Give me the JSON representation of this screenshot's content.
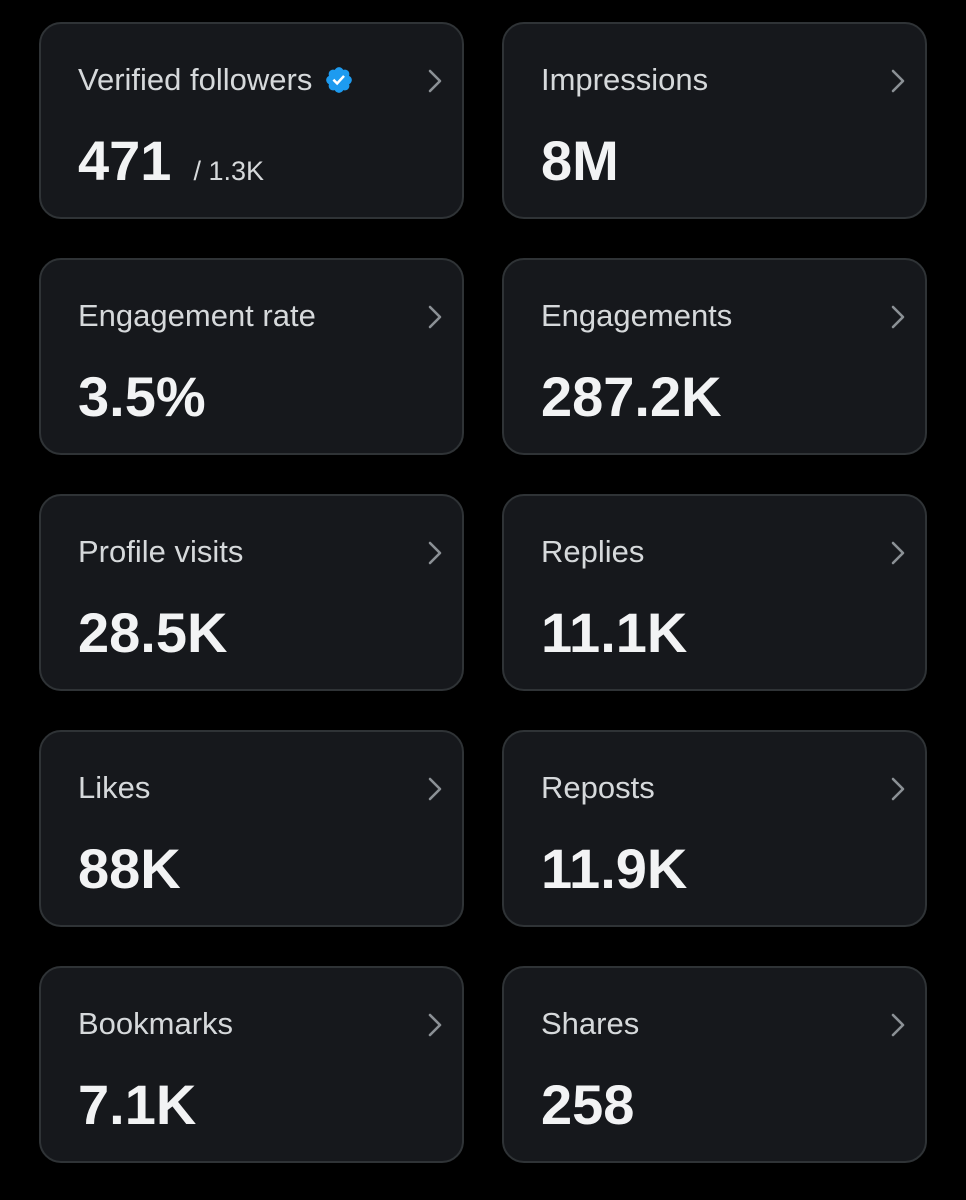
{
  "colors": {
    "background": "#000000",
    "card_background": "#16181c",
    "card_border": "#2f3336",
    "text_primary": "#f2f3f4",
    "text_secondary": "#d6d9db",
    "verified_badge": "#1d9bf0",
    "chevron": "#8b9095"
  },
  "icons": {
    "verified": "verified-badge-icon",
    "chevron": "chevron-right-icon"
  },
  "cards": [
    {
      "label": "Verified followers",
      "value": "471",
      "total": "/ 1.3K",
      "verified": true
    },
    {
      "label": "Impressions",
      "value": "8M"
    },
    {
      "label": "Engagement rate",
      "value": "3.5%"
    },
    {
      "label": "Engagements",
      "value": "287.2K"
    },
    {
      "label": "Profile visits",
      "value": "28.5K"
    },
    {
      "label": "Replies",
      "value": "11.1K"
    },
    {
      "label": "Likes",
      "value": "88K"
    },
    {
      "label": "Reposts",
      "value": "11.9K"
    },
    {
      "label": "Bookmarks",
      "value": "7.1K"
    },
    {
      "label": "Shares",
      "value": "258"
    }
  ]
}
